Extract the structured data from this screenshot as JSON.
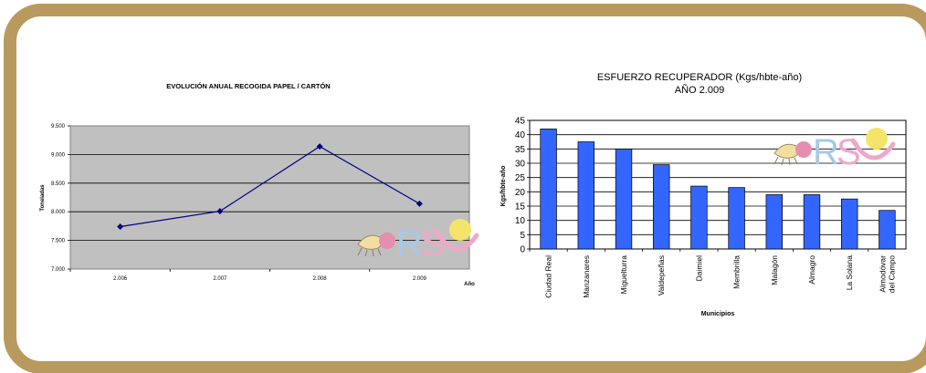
{
  "colors": {
    "frame": "#B99A5E",
    "line_plot_bg": "#C0C0C0",
    "line_color": "#000080",
    "bar_fill": "#3366FF",
    "logo_r": "#A8C8E8",
    "logo_s": "#F0A8C8",
    "logo_sun": "#F5E46A",
    "logo_arc": "#F0A8C8"
  },
  "logo": {
    "icon": "rsu-recycling-logo",
    "text_r": "R",
    "text_s": "S"
  },
  "chart_data": [
    {
      "type": "line",
      "title": "EVOLUCIÓN ANUAL RECOGIDA PAPEL / CARTÓN",
      "xlabel": "Año",
      "ylabel": "Toneladas",
      "categories": [
        "2.006",
        "2.007",
        "2.008",
        "2.009"
      ],
      "values": [
        7740,
        8010,
        9140,
        8140
      ],
      "ylim": [
        7000,
        9500
      ],
      "yticks": [
        7000,
        7500,
        8000,
        8500,
        9000,
        9500
      ],
      "ytick_labels": [
        "7.000",
        "7.500",
        "8.000",
        "8.500",
        "9.000",
        "9.500"
      ],
      "grid": true,
      "marker": "diamond"
    },
    {
      "type": "bar",
      "title": "ESFUERZO RECUPERADOR (Kgs/hbte-año)",
      "subtitle": "AÑO 2.009",
      "xlabel": "Municipios",
      "ylabel": "Kgs/hbte-año",
      "categories": [
        "Ciudad Real",
        "Manzanares",
        "Miguelturra",
        "Valdepeñas",
        "Daimiel",
        "Membrilla",
        "Malagón",
        "Almagro",
        "La Solana",
        "Almodóvar del Campo"
      ],
      "values": [
        42,
        37.5,
        35,
        29.5,
        22,
        21.5,
        19,
        19,
        17.5,
        13.5
      ],
      "ylim": [
        0,
        45
      ],
      "yticks": [
        0,
        5,
        10,
        15,
        20,
        25,
        30,
        35,
        40,
        45
      ],
      "grid": true
    }
  ]
}
